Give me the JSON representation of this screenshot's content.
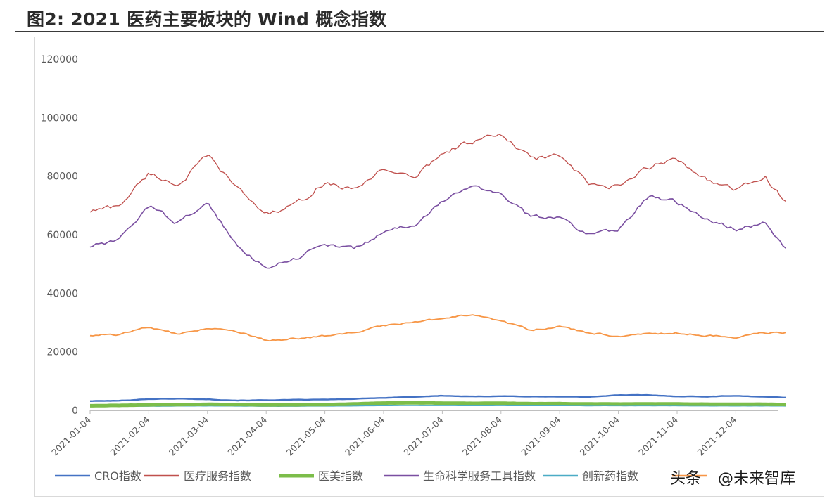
{
  "title": "图2: 2021 医药主要板块的 Wind 概念指数",
  "watermark": {
    "platform": "头条",
    "handle": "@未来智库"
  },
  "chart_data": {
    "type": "line",
    "title": "图2: 2021 医药主要板块的 Wind 概念指数",
    "xlabel": "",
    "ylabel": "",
    "ylim": [
      0,
      120000
    ],
    "yticks": [
      0,
      20000,
      40000,
      60000,
      80000,
      100000,
      120000
    ],
    "ytick_labels": [
      "0",
      "20000",
      "40000",
      "60000",
      "80000",
      "100000",
      "120000"
    ],
    "xtick_labels": [
      "2021-01-04",
      "2021-02-04",
      "2021-03-04",
      "2021-04-04",
      "2021-05-04",
      "2021-06-04",
      "2021-07-04",
      "2021-08-04",
      "2021-09-04",
      "2021-10-04",
      "2021-11-04",
      "2021-12-04"
    ],
    "grid": false,
    "legend_position": "bottom",
    "x_months": [
      0,
      0.5,
      1,
      1.5,
      2,
      2.5,
      3,
      3.5,
      4,
      4.5,
      5,
      5.5,
      6,
      6.5,
      7,
      7.5,
      8,
      8.5,
      9,
      9.5,
      10,
      10.5,
      11,
      11.5,
      11.85
    ],
    "series": [
      {
        "name": "CRO指数",
        "color": "#4472c4",
        "width": 2.4,
        "values": [
          3200,
          3300,
          3900,
          4000,
          3800,
          3400,
          3500,
          3600,
          3700,
          3900,
          4300,
          4600,
          5000,
          4700,
          4900,
          4700,
          4700,
          4600,
          5200,
          5200,
          4800,
          4700,
          5000,
          4600,
          4400
        ]
      },
      {
        "name": "医疗服务指数",
        "color": "#c0504d",
        "width": 1.3,
        "values": [
          68000,
          70000,
          81000,
          77000,
          87000,
          76000,
          67000,
          70000,
          78000,
          75000,
          83000,
          79000,
          88000,
          92000,
          94000,
          86000,
          87000,
          77000,
          76000,
          83000,
          86000,
          79000,
          75000,
          80000,
          71000
        ]
      },
      {
        "name": "医美指数",
        "color": "#7cbd4a",
        "width": 5,
        "values": [
          1600,
          1700,
          1900,
          2000,
          2100,
          2000,
          1900,
          1900,
          2000,
          2200,
          2500,
          2600,
          2500,
          2400,
          2500,
          2300,
          2300,
          2200,
          2200,
          2200,
          2200,
          2100,
          2100,
          2100,
          2000
        ]
      },
      {
        "name": "生命科学服务工具指数",
        "color": "#7a4fa1",
        "width": 1.6,
        "values": [
          56000,
          58000,
          70000,
          64000,
          71000,
          56000,
          49000,
          52000,
          57000,
          55000,
          61000,
          63000,
          71000,
          77000,
          74000,
          66000,
          66000,
          60000,
          62000,
          73000,
          71000,
          65000,
          62000,
          64000,
          55000
        ]
      },
      {
        "name": "创新药指数",
        "color": "#4bacc6",
        "width": 1.3,
        "values": [
          1300,
          1350,
          1400,
          1450,
          1500,
          1450,
          1400,
          1400,
          1450,
          1500,
          1600,
          1650,
          1650,
          1600,
          1650,
          1600,
          1600,
          1550,
          1550,
          1550,
          1550,
          1500,
          1500,
          1500,
          1450
        ]
      },
      {
        "name": "",
        "color": "#f79646",
        "width": 1.8,
        "values": [
          25600,
          26000,
          28500,
          26000,
          27800,
          27000,
          23800,
          24500,
          25500,
          26500,
          29000,
          30000,
          31500,
          32500,
          30500,
          27500,
          28500,
          26500,
          25500,
          26000,
          26500,
          25500,
          25000,
          26500,
          26500
        ]
      }
    ]
  }
}
